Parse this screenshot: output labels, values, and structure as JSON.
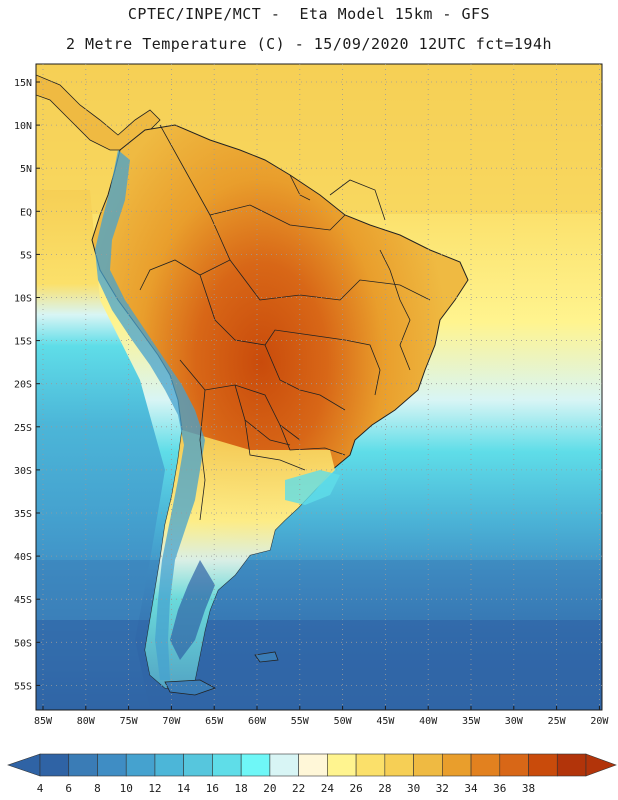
{
  "header": {
    "line1": "CPTEC/INPE/MCT -  Eta Model 15km - GFS",
    "line2": "2 Metre Temperature (C) - 15/09/2020 12UTC fct=194h"
  },
  "map": {
    "lat_labels": [
      "15N",
      "10N",
      "5N",
      "EQ",
      "5S",
      "10S",
      "15S",
      "20S",
      "25S",
      "30S",
      "35S",
      "40S",
      "45S",
      "50S",
      "55S"
    ],
    "lon_labels": [
      "85W",
      "80W",
      "75W",
      "70W",
      "65W",
      "60W",
      "55W",
      "50W",
      "45W",
      "40W",
      "35W",
      "30W",
      "25W",
      "20W"
    ]
  },
  "colorbar": {
    "labels": [
      "4",
      "6",
      "8",
      "10",
      "12",
      "14",
      "16",
      "18",
      "20",
      "22",
      "24",
      "26",
      "28",
      "30",
      "32",
      "34",
      "36",
      "38"
    ],
    "colors": [
      "#2f63a5",
      "#3a7cb6",
      "#3f8dc4",
      "#45a2cf",
      "#4cb6d8",
      "#56c6dd",
      "#5fdde8",
      "#6ff7f7",
      "#d8f5f5",
      "#fff7d8",
      "#fff48f",
      "#fbe06a",
      "#f6cf55",
      "#efba42",
      "#e99e2c",
      "#e2811f",
      "#d86717",
      "#c94b0b",
      "#b2340a"
    ],
    "low_arrow_color": "#2f63a5",
    "high_arrow_color": "#b2340a"
  },
  "palette": {
    "ocean_deep": "#2d5fa3",
    "ocean_mid": "#3d8fc6",
    "ocean_light": "#5fdde8",
    "ocean_pale": "#d8f5f5",
    "ocean_warm": "#fff48f",
    "land_hot": "#c94b0b",
    "land_warm": "#e99e2c",
    "land_mild": "#f6cf55",
    "andes_cold": "#45a2cf"
  }
}
